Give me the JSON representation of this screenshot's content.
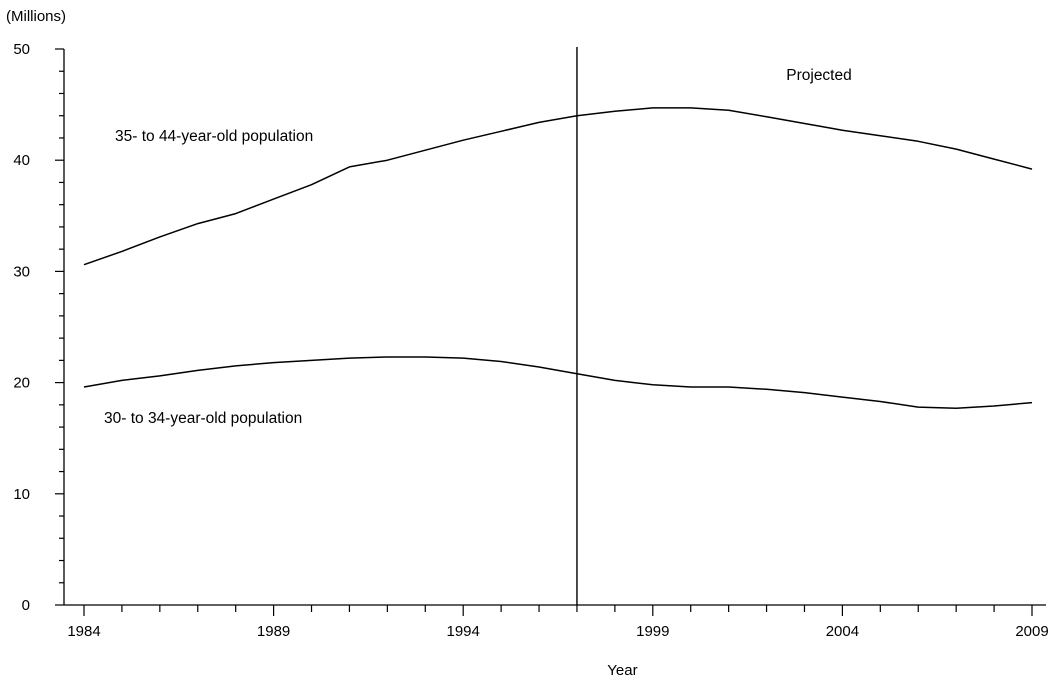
{
  "chart_data": {
    "type": "line",
    "title": "",
    "units_label": "(Millions)",
    "xlabel": "Year",
    "ylabel": "",
    "xlim": [
      1984,
      2009
    ],
    "ylim": [
      0,
      50
    ],
    "y_ticks": [
      0,
      10,
      20,
      30,
      40,
      50
    ],
    "x_ticks_labeled": [
      1984,
      1989,
      1994,
      1999,
      2004,
      2009
    ],
    "x_minor_tick_step": 1,
    "projection_start_year": 1997,
    "projection_label": "Projected",
    "grid": false,
    "legend": "none",
    "line_color": "#000000",
    "series": [
      {
        "name": "35- to 44-year-old population",
        "x": [
          1984,
          1985,
          1986,
          1987,
          1988,
          1989,
          1990,
          1991,
          1992,
          1993,
          1994,
          1995,
          1996,
          1997,
          1998,
          1999,
          2000,
          2001,
          2002,
          2003,
          2004,
          2005,
          2006,
          2007,
          2008,
          2009
        ],
        "values": [
          30.6,
          31.8,
          33.1,
          34.3,
          35.2,
          36.5,
          37.8,
          39.4,
          40.0,
          40.9,
          41.8,
          42.6,
          43.4,
          44.0,
          44.4,
          44.7,
          44.7,
          44.5,
          43.9,
          43.3,
          42.7,
          42.2,
          41.7,
          41.0,
          40.1,
          39.2
        ]
      },
      {
        "name": "30- to 34-year-old population",
        "x": [
          1984,
          1985,
          1986,
          1987,
          1988,
          1989,
          1990,
          1991,
          1992,
          1993,
          1994,
          1995,
          1996,
          1997,
          1998,
          1999,
          2000,
          2001,
          2002,
          2003,
          2004,
          2005,
          2006,
          2007,
          2008,
          2009
        ],
        "values": [
          19.6,
          20.2,
          20.6,
          21.1,
          21.5,
          21.8,
          22.0,
          22.2,
          22.3,
          22.3,
          22.2,
          21.9,
          21.4,
          20.8,
          20.2,
          19.8,
          19.6,
          19.6,
          19.4,
          19.1,
          18.7,
          18.3,
          17.8,
          17.7,
          17.9,
          18.2
        ]
      }
    ]
  }
}
